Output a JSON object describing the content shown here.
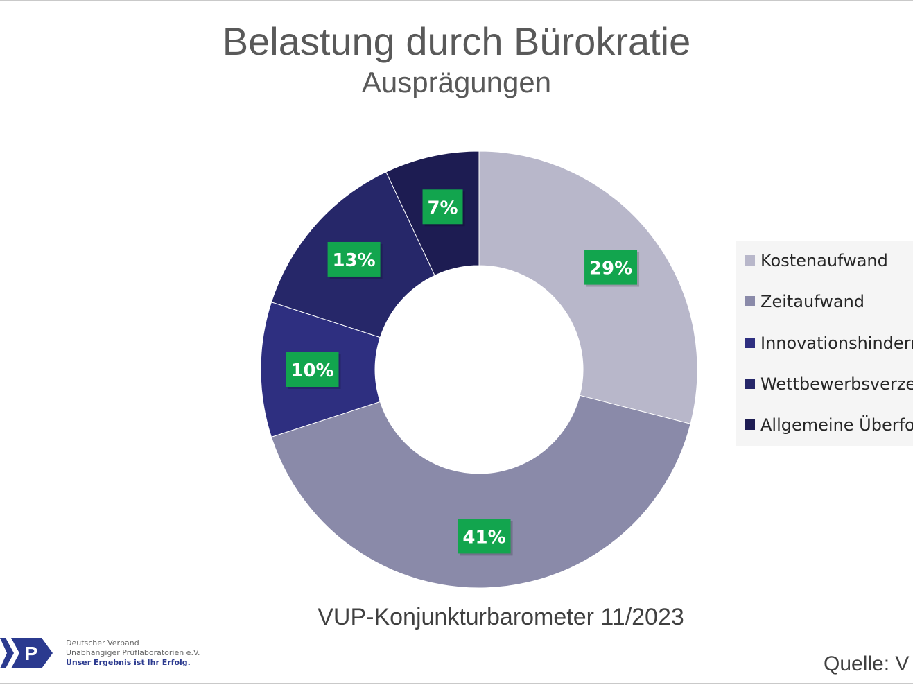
{
  "header": {
    "title": "Belastung durch Bürokratie",
    "subtitle": "Ausprägungen"
  },
  "chart_data": {
    "type": "pie",
    "style": "donut",
    "title": "Belastung durch Bürokratie",
    "subtitle": "Ausprägungen",
    "categories": [
      "Kostenaufwand",
      "Zeitaufwand",
      "Innovationshindern",
      "Wettbewerbsverze",
      "Allgemeine Überfo"
    ],
    "values": [
      29,
      41,
      10,
      13,
      7
    ],
    "data_labels": [
      "29%",
      "41%",
      "10%",
      "13%",
      "7%"
    ],
    "colors": [
      "#b8b7ca",
      "#8a8aa9",
      "#2e2f80",
      "#262769",
      "#1d1c52"
    ],
    "label_background": "#12a54e",
    "legend_position": "right"
  },
  "footer": {
    "chart_source": "VUP-Konjunkturbarometer 11/2023",
    "source_label": "Quelle: V"
  },
  "logo": {
    "letter": "P",
    "line1": "Deutscher Verband",
    "line2": "Unabhängiger Prüflaboratorien e.V.",
    "tagline": "Unser Ergebnis ist Ihr Erfolg.",
    "brand_color": "#2b3a8f"
  }
}
